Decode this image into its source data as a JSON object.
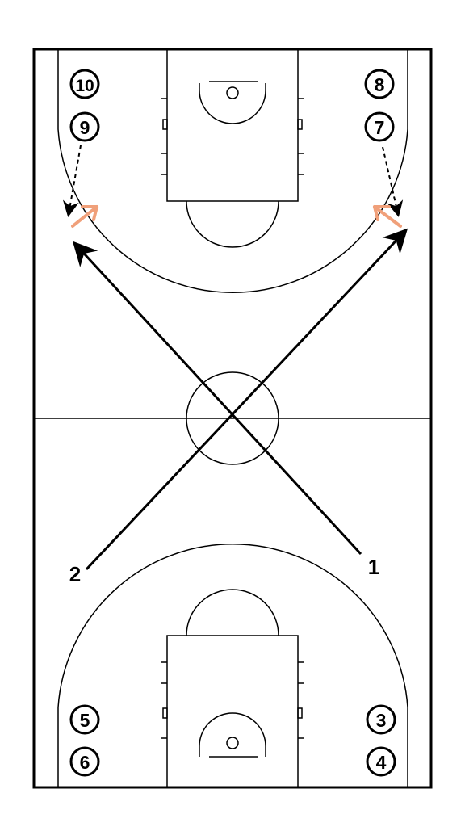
{
  "colors": {
    "line": "#000000",
    "pass_arrow": "#f0a07a",
    "background": "#ffffff"
  },
  "players": {
    "p1": "1",
    "p2": "2",
    "p3": "3",
    "p4": "4",
    "p5": "5",
    "p6": "6",
    "p7": "7",
    "p8": "8",
    "p9": "9",
    "p10": "10"
  }
}
